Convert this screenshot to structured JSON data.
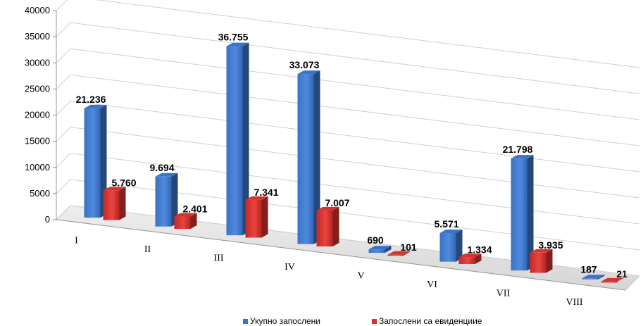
{
  "chart_data": {
    "type": "bar",
    "categories": [
      "I",
      "II",
      "III",
      "IV",
      "V",
      "VI",
      "VII",
      "VIII"
    ],
    "series": [
      {
        "name": "Укупно запослени",
        "color": "#3a74c6",
        "values": [
          21236,
          9694,
          36755,
          33073,
          690,
          5571,
          21798,
          187
        ],
        "labels": [
          "21.236",
          "9.694",
          "36.755",
          "33.073",
          "690",
          "5.571",
          "21.798",
          "187"
        ]
      },
      {
        "name": "Запослени са евиденциие",
        "color": "#d43330",
        "values": [
          5760,
          2401,
          7341,
          7007,
          101,
          1334,
          3935,
          21
        ],
        "labels": [
          "5.760",
          "2.401",
          "7.341",
          "7.007",
          "101",
          "1.334",
          "3.935",
          "21"
        ]
      }
    ],
    "yticks": [
      "0",
      "5000",
      "10000",
      "15000",
      "20000",
      "25000",
      "30000",
      "35000",
      "40000"
    ],
    "ylim": [
      0,
      40000
    ],
    "grid": true,
    "legend_position": "bottom",
    "style": "3d-clustered-column"
  }
}
